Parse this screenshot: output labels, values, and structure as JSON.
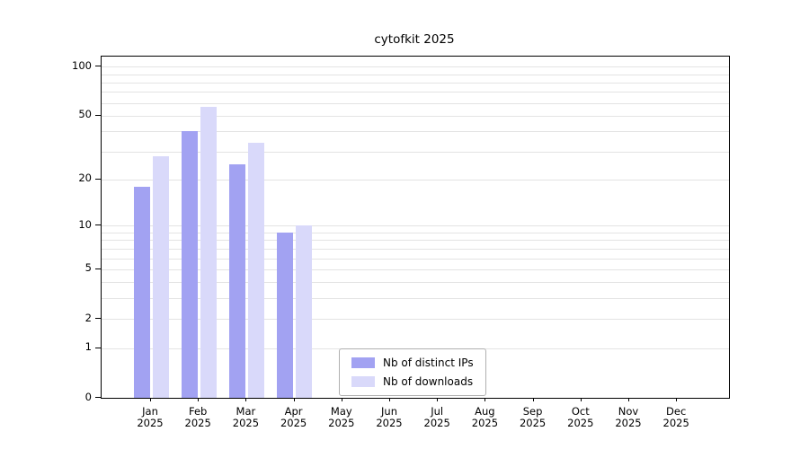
{
  "title": "cytofkit 2025",
  "chart_data": {
    "type": "bar",
    "title": "cytofkit 2025",
    "x_months": [
      "Jan",
      "Feb",
      "Mar",
      "Apr",
      "May",
      "Jun",
      "Jul",
      "Aug",
      "Sep",
      "Oct",
      "Nov",
      "Dec"
    ],
    "x_year": "2025",
    "categories": [
      "Jan 2025",
      "Feb 2025",
      "Mar 2025",
      "Apr 2025",
      "May 2025",
      "Jun 2025",
      "Jul 2025",
      "Aug 2025",
      "Sep 2025",
      "Oct 2025",
      "Nov 2025",
      "Dec 2025"
    ],
    "series": [
      {
        "name": "Nb of distinct IPs",
        "color": "#a2a2f2",
        "values": [
          18,
          40,
          25,
          9,
          0,
          0,
          0,
          0,
          0,
          0,
          0,
          0
        ]
      },
      {
        "name": "Nb of downloads",
        "color": "#d9d9fa",
        "values": [
          28,
          57,
          34,
          10,
          0,
          0,
          0,
          0,
          0,
          0,
          0,
          0
        ]
      }
    ],
    "yscale": "log(1+v)",
    "yticks": [
      0,
      1,
      2,
      5,
      10,
      20,
      50,
      100
    ],
    "grid_lines": [
      1,
      2,
      3,
      4,
      5,
      6,
      7,
      8,
      9,
      10,
      20,
      30,
      40,
      50,
      60,
      70,
      80,
      90,
      100
    ],
    "ylim": [
      0,
      115
    ],
    "grid": true,
    "legend_position": "bottom-center"
  }
}
